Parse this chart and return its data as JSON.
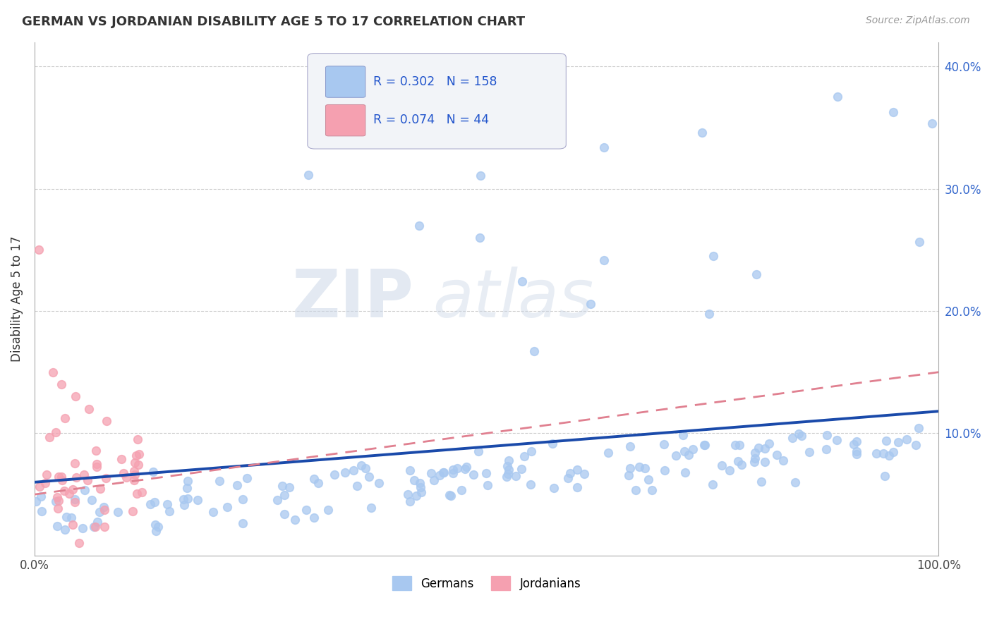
{
  "title": "GERMAN VS JORDANIAN DISABILITY AGE 5 TO 17 CORRELATION CHART",
  "source": "Source: ZipAtlas.com",
  "ylabel": "Disability Age 5 to 17",
  "xlim": [
    0,
    1.0
  ],
  "ylim": [
    0,
    0.42
  ],
  "xtick_labels": [
    "0.0%",
    "100.0%"
  ],
  "ytick_labels": [
    "10.0%",
    "20.0%",
    "30.0%",
    "40.0%"
  ],
  "ytick_values": [
    0.1,
    0.2,
    0.3,
    0.4
  ],
  "german_R": 0.302,
  "german_N": 158,
  "jordanian_R": 0.074,
  "jordanian_N": 44,
  "german_color": "#a8c8f0",
  "jordanian_color": "#f5a0b0",
  "trendline_german_color": "#1a4aaa",
  "trendline_jordanian_color": "#e08090",
  "watermark_zip": "ZIP",
  "watermark_atlas": "atlas",
  "background_color": "#ffffff",
  "grid_color": "#cccccc",
  "legend_R_color": "#2255cc",
  "legend_N_color": "#cc2222",
  "trendline_german_start_y": 0.06,
  "trendline_german_end_y": 0.118,
  "trendline_jordan_start_y": 0.05,
  "trendline_jordan_end_y": 0.15
}
